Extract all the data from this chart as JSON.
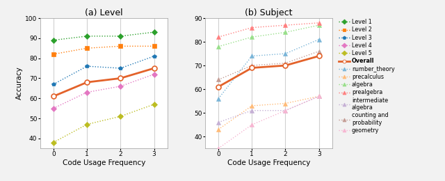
{
  "title_left": "(a) Level",
  "title_right": "(b) Subject",
  "xlabel": "Code Usage Frequency",
  "ylabel": "Accuracy",
  "x": [
    0,
    1,
    2,
    3
  ],
  "level_data": [
    {
      "name": "Level 1",
      "y": [
        89,
        91,
        91,
        93
      ],
      "color": "#2ca02c",
      "marker": "D"
    },
    {
      "name": "Level 2",
      "y": [
        82,
        85,
        86,
        86
      ],
      "color": "#ff7f0e",
      "marker": "s"
    },
    {
      "name": "Level 3",
      "y": [
        67,
        76,
        75,
        81
      ],
      "color": "#1f77b4",
      "marker": "p"
    },
    {
      "name": "Level 4",
      "y": [
        55,
        63,
        66,
        72
      ],
      "color": "#e377c2",
      "marker": "D"
    },
    {
      "name": "Level 5",
      "y": [
        38,
        47,
        51,
        57
      ],
      "color": "#bcbd22",
      "marker": "D"
    },
    {
      "name": "Overall",
      "y": [
        61,
        68,
        70,
        75
      ],
      "color": "#e3622a",
      "marker": "o"
    }
  ],
  "subject_data": [
    {
      "name": "number_theory",
      "y": [
        56,
        74,
        75,
        81
      ],
      "color": "#7ab5d8",
      "marker": "^"
    },
    {
      "name": "precalculus",
      "y": [
        43,
        53,
        54,
        57
      ],
      "color": "#ffbb78",
      "marker": "^"
    },
    {
      "name": "algebra",
      "y": [
        78,
        82,
        84,
        87
      ],
      "color": "#98df8a",
      "marker": "^"
    },
    {
      "name": "prealgebra",
      "y": [
        82,
        86,
        87,
        88
      ],
      "color": "#ff7f7f",
      "marker": "^"
    },
    {
      "name": "intermediate_algebra",
      "y": [
        46,
        51,
        51,
        57
      ],
      "color": "#c5b0d5",
      "marker": "^"
    },
    {
      "name": "counting_and_probability",
      "y": [
        64,
        70,
        71,
        76
      ],
      "color": "#c49c94",
      "marker": "^"
    },
    {
      "name": "geometry",
      "y": [
        35,
        45,
        51,
        57
      ],
      "color": "#f7b6d2",
      "marker": "^"
    },
    {
      "name": "Overall",
      "y": [
        61,
        69,
        70,
        74
      ],
      "color": "#e3622a",
      "marker": "o"
    }
  ],
  "ylim_left": [
    35,
    100
  ],
  "ylim_right": [
    35,
    90
  ],
  "yticks_left": [
    40,
    50,
    60,
    70,
    80,
    90,
    100
  ],
  "yticks_right": [
    40,
    50,
    60,
    70,
    80,
    90
  ],
  "xticks": [
    0,
    1,
    2,
    3
  ],
  "legend_items": [
    {
      "label": "Level 1",
      "color": "#2ca02c",
      "marker": "D",
      "ls": "dotted",
      "lw": 1.0,
      "bold": false
    },
    {
      "label": "Level 2",
      "color": "#ff7f0e",
      "marker": "s",
      "ls": "dotted",
      "lw": 1.0,
      "bold": false
    },
    {
      "label": "Level 3",
      "color": "#1f77b4",
      "marker": "p",
      "ls": "dotted",
      "lw": 1.0,
      "bold": false
    },
    {
      "label": "Level 4",
      "color": "#e377c2",
      "marker": "D",
      "ls": "dotted",
      "lw": 1.0,
      "bold": false
    },
    {
      "label": "Level 5",
      "color": "#bcbd22",
      "marker": "D",
      "ls": "dotted",
      "lw": 1.0,
      "bold": false
    },
    {
      "label": "Overall",
      "color": "#e3622a",
      "marker": "o",
      "ls": "solid",
      "lw": 2.0,
      "bold": true
    },
    {
      "label": "number_theory",
      "color": "#7ab5d8",
      "marker": "^",
      "ls": "dotted",
      "lw": 1.0,
      "bold": false
    },
    {
      "label": "precalculus",
      "color": "#ffbb78",
      "marker": "^",
      "ls": "dotted",
      "lw": 1.0,
      "bold": false
    },
    {
      "label": "algebra",
      "color": "#98df8a",
      "marker": "^",
      "ls": "dotted",
      "lw": 1.0,
      "bold": false
    },
    {
      "label": "prealgebra",
      "color": "#ff7f7f",
      "marker": "^",
      "ls": "dotted",
      "lw": 1.0,
      "bold": false
    },
    {
      "label": "intermediate\nalgebra",
      "color": "#c5b0d5",
      "marker": "^",
      "ls": "dotted",
      "lw": 1.0,
      "bold": false
    },
    {
      "label": "counting and\nprobability",
      "color": "#c49c94",
      "marker": "^",
      "ls": "dotted",
      "lw": 1.0,
      "bold": false
    },
    {
      "label": "geometry",
      "color": "#f7b6d2",
      "marker": "^",
      "ls": "dotted",
      "lw": 1.0,
      "bold": false
    }
  ],
  "plot_bg": "#ffffff",
  "fig_bg": "#f2f2f2",
  "grid_color": "#d0d0d0",
  "spine_color": "#aaaaaa"
}
